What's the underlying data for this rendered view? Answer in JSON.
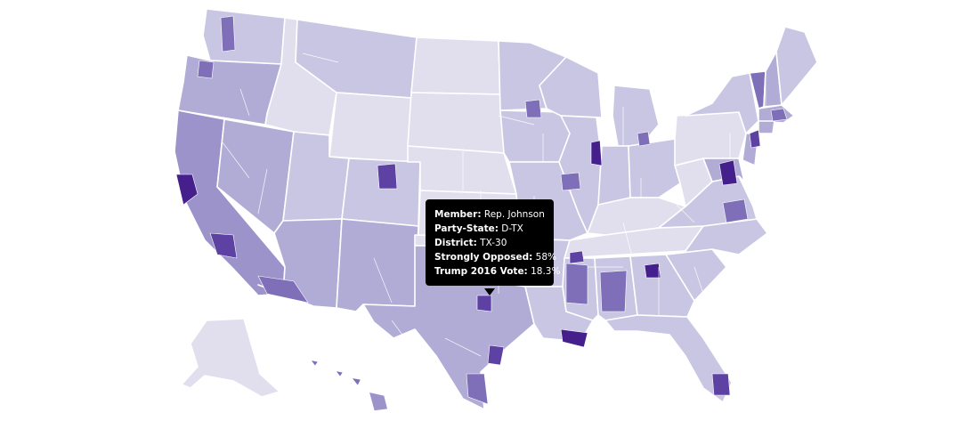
{
  "colors": {
    "c1": "#e1dfee",
    "c2": "#c8c6e2",
    "c3": "#b1acd5",
    "c4": "#9b93c9",
    "c5": "#7e6fb8",
    "c6": "#5d42a3",
    "c7": "#45208c",
    "border": "#ffffff",
    "tooltip_bg": "#000000",
    "tooltip_text": "#ffffff"
  },
  "tooltip": {
    "member_label": "Member:",
    "member_value": "Rep. Johnson",
    "party_state_label": "Party-State:",
    "party_state_value": "D-TX",
    "district_label": "District:",
    "district_value": "TX-30",
    "opposed_label": "Strongly Opposed:",
    "opposed_value": "58%",
    "trump_label": "Trump 2016 Vote:",
    "trump_value": "18.3%"
  }
}
